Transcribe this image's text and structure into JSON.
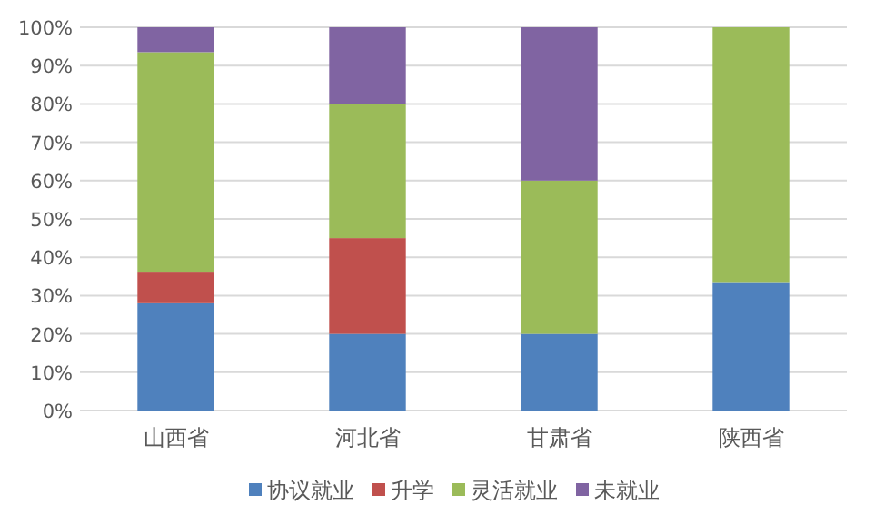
{
  "chart_data": {
    "type": "bar",
    "stacked": true,
    "categories": [
      "山西省",
      "河北省",
      "甘肃省",
      "陕西省"
    ],
    "series": [
      {
        "name": "协议就业",
        "color": "#4f81bd",
        "values": [
          28,
          20,
          20,
          33.3
        ]
      },
      {
        "name": "升学",
        "color": "#c0504d",
        "values": [
          8,
          25,
          0,
          0
        ]
      },
      {
        "name": "灵活就业",
        "color": "#9bbb59",
        "values": [
          57.5,
          35,
          40,
          66.7
        ]
      },
      {
        "name": "未就业",
        "color": "#8064a2",
        "values": [
          6.5,
          20,
          40,
          0
        ]
      }
    ],
    "ylim": [
      0,
      100
    ],
    "yticks": [
      {
        "value": 0,
        "label": "0%"
      },
      {
        "value": 10,
        "label": "10%"
      },
      {
        "value": 20,
        "label": "20%"
      },
      {
        "value": 30,
        "label": "30%"
      },
      {
        "value": 40,
        "label": "40%"
      },
      {
        "value": 50,
        "label": "50%"
      },
      {
        "value": 60,
        "label": "60%"
      },
      {
        "value": 70,
        "label": "70%"
      },
      {
        "value": 80,
        "label": "80%"
      },
      {
        "value": 90,
        "label": "90%"
      },
      {
        "value": 100,
        "label": "100%"
      }
    ],
    "grid": "y",
    "legend": "bottom"
  }
}
